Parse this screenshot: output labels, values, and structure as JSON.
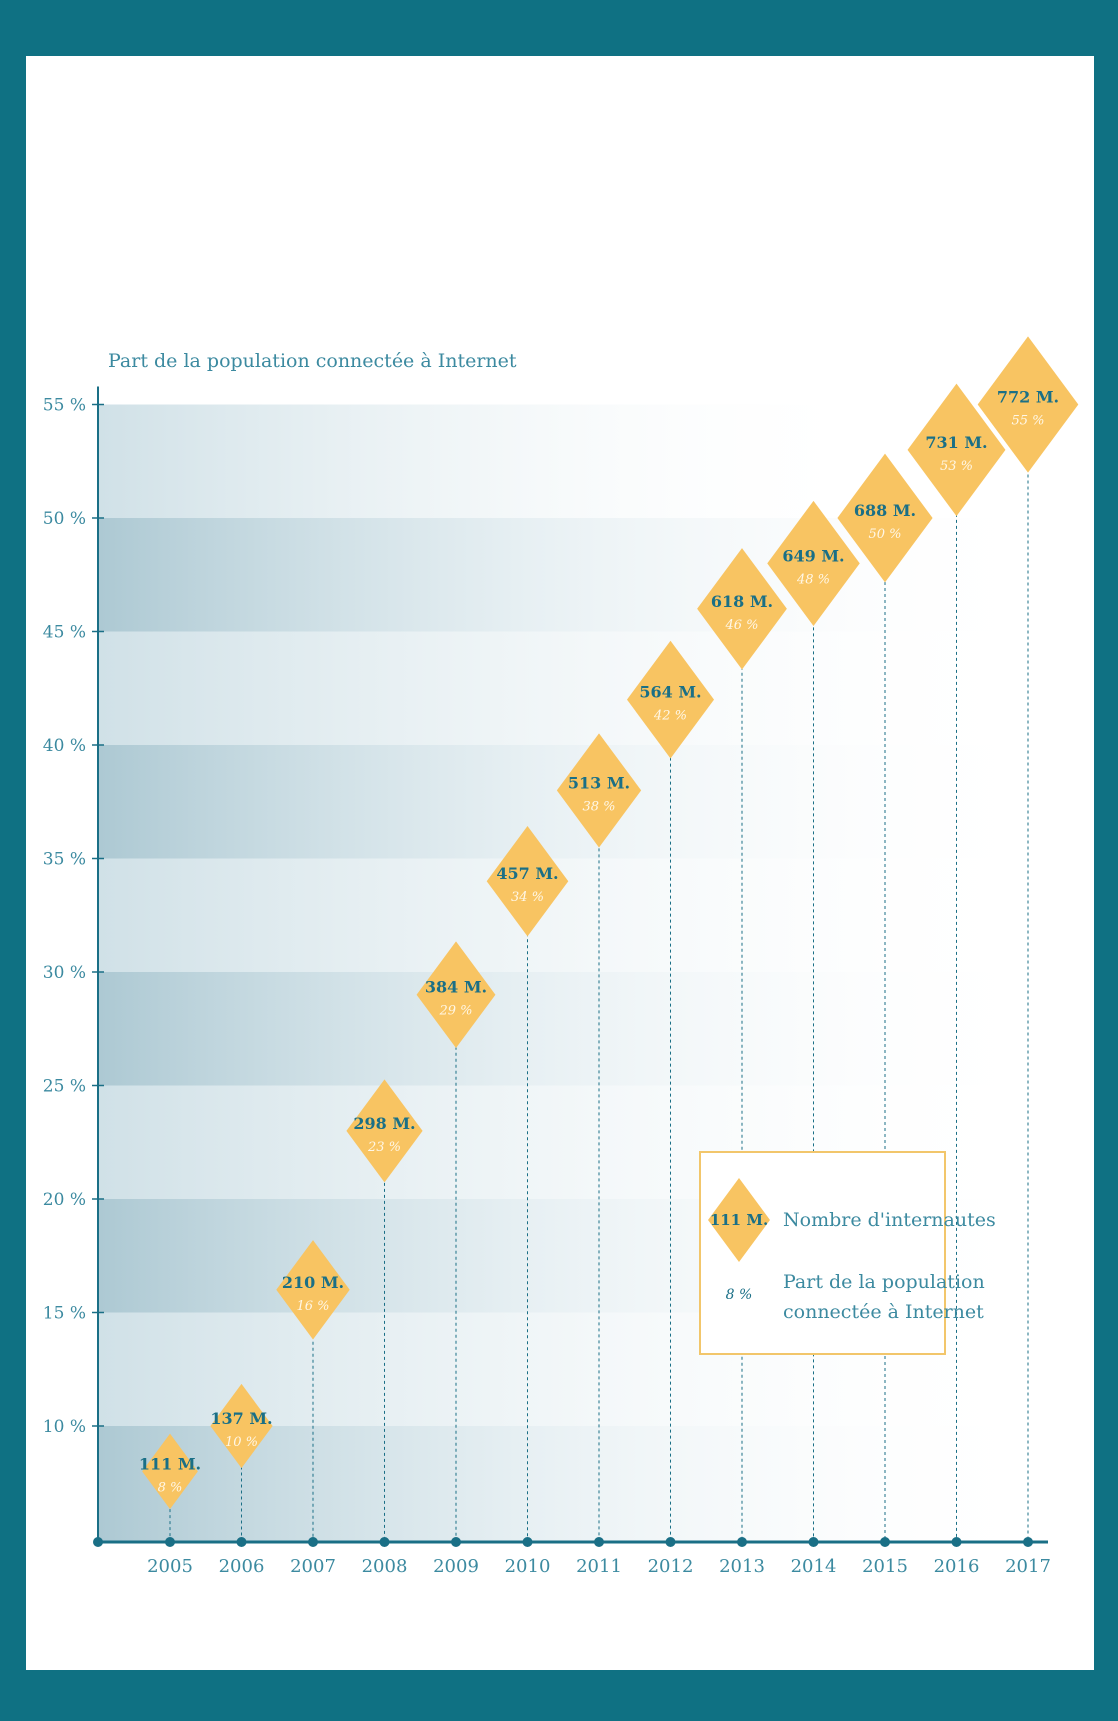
{
  "colors": {
    "border": "#0f7183",
    "axis": "#1a6f86",
    "diamond": "#f8c462",
    "value_text": "#1a6f86",
    "percent_text": "#fff7e6",
    "label_text": "#3c8aa0",
    "legend_border": "#f2c66b"
  },
  "chart_data": {
    "type": "scatter",
    "marker": "diamond",
    "ylabel": "Part de la population connectée à Internet",
    "ylim": [
      5,
      55
    ],
    "yticks": [
      10,
      15,
      20,
      25,
      30,
      35,
      40,
      45,
      50,
      55
    ],
    "ytick_labels": [
      "10 %",
      "15 %",
      "20 %",
      "25 %",
      "30 %",
      "35 %",
      "40 %",
      "45 %",
      "50 %",
      "55 %"
    ],
    "x": [
      "2005",
      "2006",
      "2007",
      "2008",
      "2009",
      "2010",
      "2011",
      "2012",
      "2013",
      "2014",
      "2015",
      "2016",
      "2017"
    ],
    "internautes_millions": [
      111,
      137,
      210,
      298,
      384,
      457,
      513,
      564,
      618,
      649,
      688,
      731,
      772
    ],
    "value_labels": [
      "111 M.",
      "137 M.",
      "210 M.",
      "298 M.",
      "384 M.",
      "457 M.",
      "513 M.",
      "564 M.",
      "618 M.",
      "649 M.",
      "688 M.",
      "731 M.",
      "772 M."
    ],
    "percent_values": [
      8,
      10,
      16,
      23,
      29,
      34,
      38,
      42,
      46,
      48,
      50,
      53,
      55
    ],
    "percent_labels": [
      "8 %",
      "10 %",
      "16 %",
      "23 %",
      "29 %",
      "34 %",
      "38 %",
      "42 %",
      "46 %",
      "48 %",
      "50 %",
      "53 %",
      "55 %"
    ],
    "legend": {
      "position": "bottom-right",
      "sample_value": "111 M.",
      "sample_percent": "8 %",
      "label_count": "Nombre d'internautes",
      "label_share_line1": "Part de la population",
      "label_share_line2": "connectée à Internet"
    }
  }
}
